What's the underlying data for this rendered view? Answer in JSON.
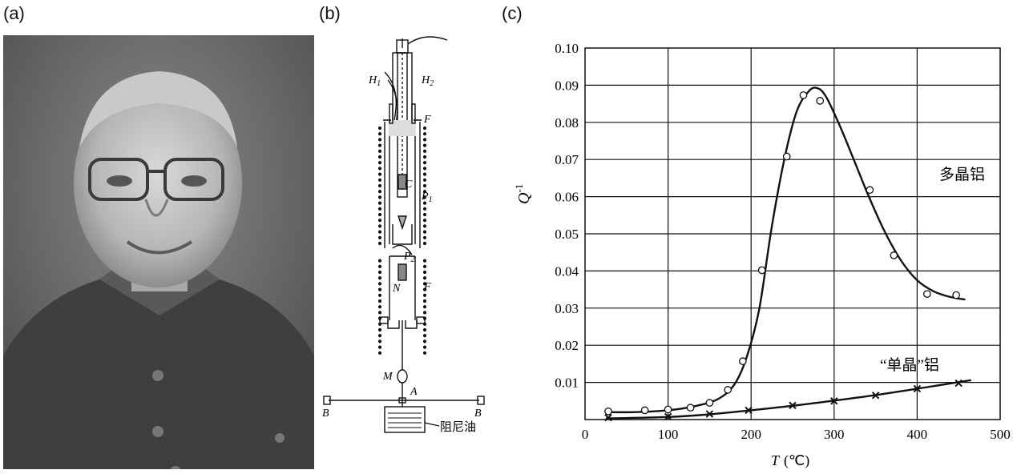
{
  "panels": {
    "a": {
      "label": "(a)",
      "photo_description": "portrait"
    },
    "b": {
      "label": "(b)",
      "labels": {
        "H1": "H",
        "H1_sub": "1",
        "H2": "H",
        "H2_sub": "2",
        "F_top": "F",
        "C": "C",
        "P1": "P",
        "P1_sub": "1",
        "P2": "P",
        "P2_sub": "2",
        "N": "N",
        "F_bottom": "F",
        "M": "M",
        "A": "A",
        "B_left": "B",
        "B_right": "B",
        "oil": "阻尼油"
      }
    },
    "c": {
      "label": "(c)"
    }
  },
  "chart_data": {
    "type": "scatter",
    "xlabel": "T",
    "xlabel_unit": "(℃)",
    "ylabel": "Q",
    "ylabel_sup": "-1",
    "xlim": [
      0,
      500
    ],
    "ylim": [
      0,
      0.1
    ],
    "x_ticks": [
      "0",
      "100",
      "200",
      "300",
      "400",
      "500"
    ],
    "y_ticks": [
      "0.01",
      "0.02",
      "0.03",
      "0.04",
      "0.05",
      "0.06",
      "0.07",
      "0.08",
      "0.09",
      "0.10"
    ],
    "grid": true,
    "series": [
      {
        "name": "多晶铝",
        "marker": "circle",
        "points": [
          [
            28,
            0.0022
          ],
          [
            72,
            0.0025
          ],
          [
            100,
            0.0027
          ],
          [
            127,
            0.0032
          ],
          [
            150,
            0.0045
          ],
          [
            172,
            0.008
          ],
          [
            190,
            0.0157
          ],
          [
            213,
            0.0402
          ],
          [
            243,
            0.0708
          ],
          [
            263,
            0.0873
          ],
          [
            283,
            0.0858
          ],
          [
            343,
            0.0618
          ],
          [
            372,
            0.0442
          ],
          [
            412,
            0.0338
          ],
          [
            447,
            0.0335
          ]
        ],
        "curve": [
          [
            28,
            0.002
          ],
          [
            60,
            0.002
          ],
          [
            100,
            0.0025
          ],
          [
            130,
            0.0035
          ],
          [
            160,
            0.0055
          ],
          [
            180,
            0.0095
          ],
          [
            195,
            0.017
          ],
          [
            210,
            0.03
          ],
          [
            225,
            0.052
          ],
          [
            240,
            0.07
          ],
          [
            255,
            0.083
          ],
          [
            270,
            0.0885
          ],
          [
            280,
            0.0892
          ],
          [
            290,
            0.087
          ],
          [
            305,
            0.08
          ],
          [
            320,
            0.072
          ],
          [
            340,
            0.061
          ],
          [
            360,
            0.051
          ],
          [
            380,
            0.043
          ],
          [
            400,
            0.0375
          ],
          [
            420,
            0.0345
          ],
          [
            440,
            0.033
          ],
          [
            458,
            0.0323
          ]
        ]
      },
      {
        "name": "“单晶”铝",
        "marker": "cross",
        "points": [
          [
            28,
            0.0005
          ],
          [
            100,
            0.0008
          ],
          [
            150,
            0.0015
          ],
          [
            197,
            0.0025
          ],
          [
            250,
            0.0038
          ],
          [
            300,
            0.005
          ],
          [
            350,
            0.0065
          ],
          [
            400,
            0.0083
          ],
          [
            450,
            0.0098
          ]
        ],
        "curve": [
          [
            25,
            0.0003
          ],
          [
            100,
            0.0007
          ],
          [
            150,
            0.0014
          ],
          [
            200,
            0.0025
          ],
          [
            250,
            0.0037
          ],
          [
            300,
            0.0051
          ],
          [
            350,
            0.0066
          ],
          [
            400,
            0.0083
          ],
          [
            465,
            0.0106
          ]
        ]
      }
    ]
  }
}
